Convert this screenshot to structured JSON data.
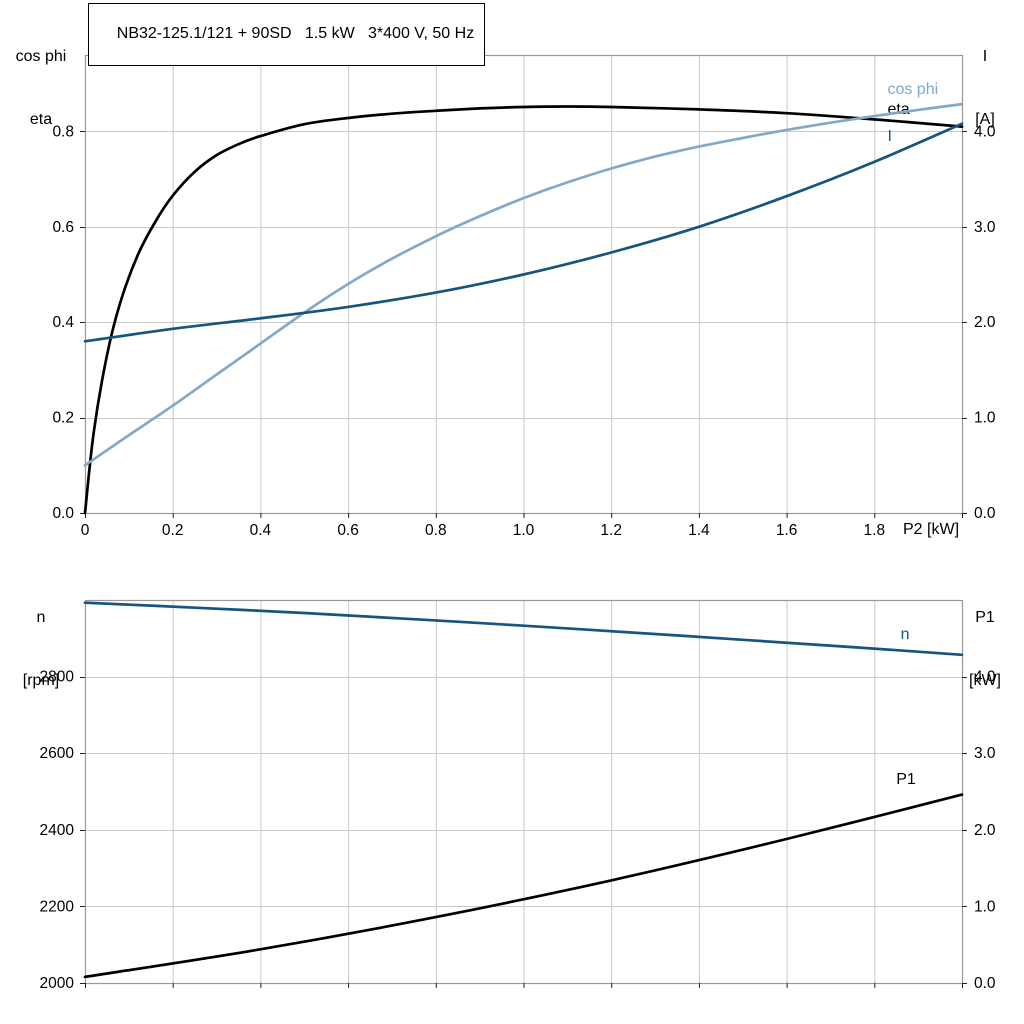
{
  "title_box": {
    "text": "NB32-125.1/121 + 90SD   1.5 kW   3*400 V, 50 Hz"
  },
  "colors": {
    "black": "#000000",
    "dark_blue": "#17547e",
    "light_blue": "#84a8c8",
    "grid": "#c9c9c9",
    "frame": "#9a9a9a",
    "tick": "#222222"
  },
  "chart_data": [
    {
      "type": "line",
      "title": "NB32-125.1/121 + 90SD   1.5 kW   3*400 V, 50 Hz",
      "xlabel": "P2 [kW]",
      "ylabel_left": [
        "cos phi",
        "eta"
      ],
      "ylabel_right": [
        "I",
        "[A]"
      ],
      "xlim": [
        0,
        2.0
      ],
      "xticks": [
        0,
        0.2,
        0.4,
        0.6,
        0.8,
        1.0,
        1.2,
        1.4,
        1.6,
        1.8
      ],
      "xtick_labels": [
        "0",
        "0.2",
        "0.4",
        "0.6",
        "0.8",
        "1.0",
        "1.2",
        "1.4",
        "1.6",
        "1.8"
      ],
      "show_xtick_labels": true,
      "grid": true,
      "legend_position": "end-of-curve",
      "ylim_left": [
        0,
        0.96
      ],
      "yticks_left": [
        "0.0",
        "0.2",
        "0.4",
        "0.6",
        "0.8"
      ],
      "ylim_right": [
        0,
        4.8
      ],
      "yticks_right": [
        "0.0",
        "1.0",
        "2.0",
        "3.0",
        "4.0"
      ],
      "series": [
        {
          "name": "eta",
          "axis": "left",
          "color_key": "black",
          "x": [
            0,
            0.02,
            0.05,
            0.08,
            0.12,
            0.16,
            0.2,
            0.25,
            0.3,
            0.35,
            0.4,
            0.5,
            0.6,
            0.7,
            0.8,
            0.9,
            1.0,
            1.1,
            1.2,
            1.4,
            1.6,
            1.8,
            2.0
          ],
          "y": [
            0,
            0.17,
            0.33,
            0.44,
            0.54,
            0.61,
            0.665,
            0.715,
            0.75,
            0.773,
            0.79,
            0.815,
            0.828,
            0.837,
            0.843,
            0.848,
            0.851,
            0.852,
            0.851,
            0.846,
            0.838,
            0.825,
            0.81
          ],
          "label_at": [
            1.83,
            0.836
          ]
        },
        {
          "name": "cos phi",
          "axis": "left",
          "color_key": "light_blue",
          "x": [
            0,
            0.1,
            0.2,
            0.3,
            0.4,
            0.5,
            0.6,
            0.7,
            0.8,
            0.9,
            1.0,
            1.1,
            1.2,
            1.3,
            1.4,
            1.5,
            1.6,
            1.7,
            1.8,
            1.9,
            2.0
          ],
          "y": [
            0.1,
            0.163,
            0.225,
            0.29,
            0.355,
            0.42,
            0.48,
            0.533,
            0.58,
            0.622,
            0.66,
            0.693,
            0.722,
            0.747,
            0.768,
            0.786,
            0.803,
            0.818,
            0.832,
            0.845,
            0.857
          ],
          "label_at": [
            1.83,
            0.878
          ]
        },
        {
          "name": "I",
          "axis": "right",
          "color_key": "dark_blue",
          "x": [
            0,
            0.2,
            0.4,
            0.6,
            0.8,
            1.0,
            1.2,
            1.4,
            1.6,
            1.8,
            2.0
          ],
          "y": [
            1.8,
            1.93,
            2.04,
            2.16,
            2.31,
            2.5,
            2.73,
            3.0,
            3.32,
            3.68,
            4.08
          ],
          "label_at": [
            1.83,
            3.9
          ]
        }
      ]
    },
    {
      "type": "line",
      "title": "",
      "xlabel": "",
      "ylabel_left": [
        "n",
        "[rpm]"
      ],
      "ylabel_right": [
        "P1",
        "[kW]"
      ],
      "xlim": [
        0,
        2.0
      ],
      "xticks": [
        0,
        0.2,
        0.4,
        0.6,
        0.8,
        1.0,
        1.2,
        1.4,
        1.6,
        1.8
      ],
      "xtick_labels": [],
      "show_xtick_labels": false,
      "grid": true,
      "legend_position": "end-of-curve",
      "ylim_left": [
        2000,
        3000
      ],
      "yticks_left": [
        "2000",
        "2200",
        "2400",
        "2600",
        "2800"
      ],
      "ylim_right": [
        0,
        5.0
      ],
      "yticks_right": [
        "0.0",
        "1.0",
        "2.0",
        "3.0",
        "4.0"
      ],
      "series": [
        {
          "name": "n",
          "axis": "left",
          "color_key": "dark_blue",
          "x": [
            0,
            0.25,
            0.5,
            0.75,
            1.0,
            1.25,
            1.5,
            1.75,
            2.0
          ],
          "y": [
            2993,
            2980,
            2966,
            2950,
            2933,
            2915,
            2896,
            2877,
            2857
          ],
          "label_at": [
            1.86,
            2898
          ]
        },
        {
          "name": "P1",
          "axis": "right",
          "color_key": "black",
          "x": [
            0,
            0.4,
            0.8,
            1.2,
            1.6,
            2.0
          ],
          "y": [
            0.08,
            0.44,
            0.86,
            1.34,
            1.88,
            2.46
          ],
          "label_at": [
            1.85,
            2.6
          ]
        }
      ]
    }
  ]
}
